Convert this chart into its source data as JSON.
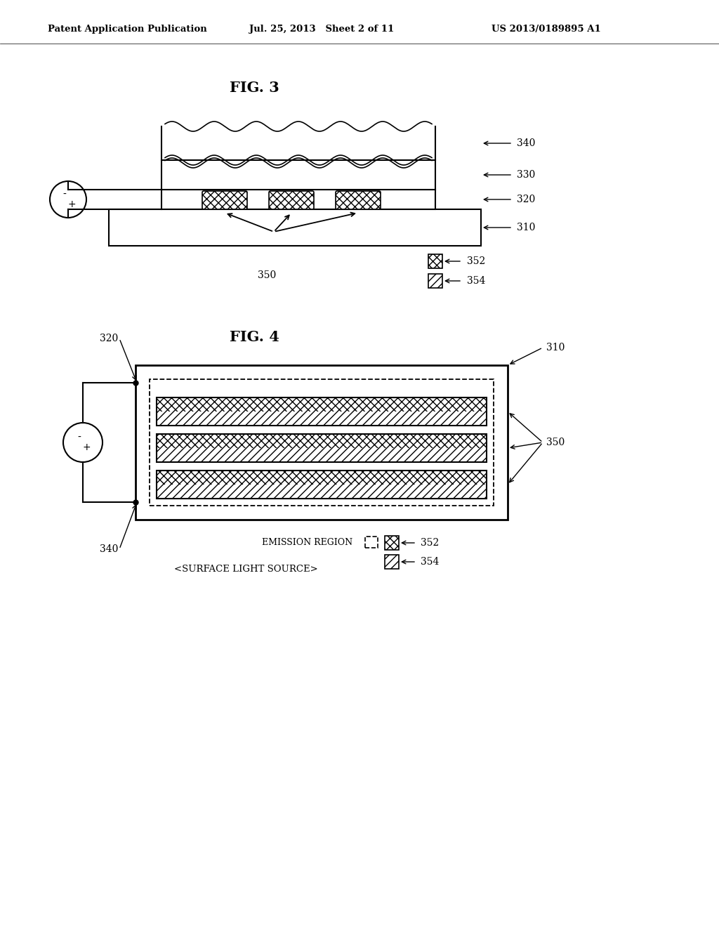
{
  "bg_color": "#ffffff",
  "header_left": "Patent Application Publication",
  "header_mid": "Jul. 25, 2013   Sheet 2 of 11",
  "header_right": "US 2013/0189895 A1",
  "fig3_title": "FIG. 3",
  "fig4_title": "FIG. 4",
  "line_color": "#000000"
}
